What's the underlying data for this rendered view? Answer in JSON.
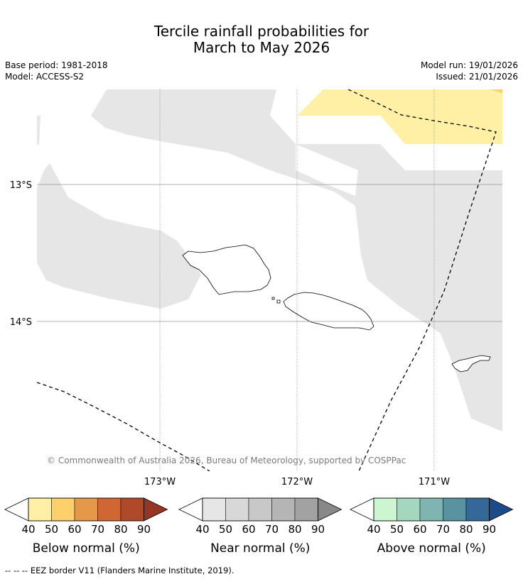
{
  "title": {
    "line1": "Tercile rainfall probabilities for",
    "line2": "March to May 2026"
  },
  "meta": {
    "base_period": "Base period: 1981-2018",
    "model": "Model: ACCESS-S2",
    "model_run": "Model run: 19/01/2026",
    "issued": "Issued: 21/01/2026"
  },
  "axes": {
    "lat_labels": [
      "13°S",
      "14°S"
    ],
    "lon_labels": [
      "173°W",
      "172°W",
      "171°W"
    ]
  },
  "copyright": "© Commonwealth of Australia 2026, Bureau of Meteorology, supported by COSPPac",
  "legends": [
    {
      "label": "Below normal (%)",
      "ticks": [
        "40",
        "50",
        "60",
        "70",
        "80",
        "90"
      ],
      "colors": [
        "#fff0a5",
        "#fdd06a",
        "#e59848",
        "#cf6634",
        "#b0482a",
        "#943623"
      ]
    },
    {
      "label": "Near normal (%)",
      "ticks": [
        "40",
        "50",
        "60",
        "70",
        "80",
        "90"
      ],
      "colors": [
        "#e6e6e6",
        "#d8d8d8",
        "#c8c8c8",
        "#b5b5b5",
        "#a2a2a2",
        "#888888"
      ]
    },
    {
      "label": "Above normal (%)",
      "ticks": [
        "40",
        "50",
        "60",
        "70",
        "80",
        "90"
      ],
      "colors": [
        "#ccf6d0",
        "#a4d8be",
        "#80b4b0",
        "#5a93a0",
        "#336898",
        "#1d4a88"
      ]
    }
  ],
  "footnote": "--  --  -- EEZ border V11 (Flanders Marine Institute, 2019).",
  "colors": {
    "near_normal_fill": "#e6e6e6",
    "below_normal_fill": "#fff0a5",
    "below_edge": "#fdd06a"
  }
}
